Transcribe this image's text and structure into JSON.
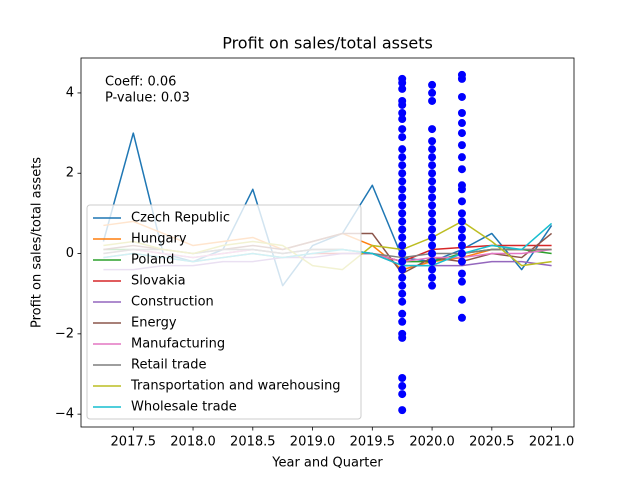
{
  "chart_data": [
    {
      "type": "line",
      "title": "Profit on sales/total assets",
      "xlabel": "Year and Quarter",
      "ylabel": "Profit on sales/total assets",
      "annotations": [
        "Coeff: 0.06",
        "P-value: 0.03"
      ],
      "x": [
        2017.25,
        2017.5,
        2017.75,
        2018.0,
        2018.25,
        2018.5,
        2018.75,
        2019.0,
        2019.25,
        2019.5,
        2019.75,
        2020.0,
        2020.25,
        2020.5,
        2020.75,
        2021.0
      ],
      "series": [
        {
          "name": "Czech Republic",
          "color": "#1f77b4",
          "values": [
            0.3,
            3.0,
            0.0,
            -0.2,
            0.1,
            1.6,
            -0.8,
            0.2,
            0.5,
            1.7,
            -0.1,
            -0.2,
            0.1,
            0.5,
            -0.4,
            0.7
          ]
        },
        {
          "name": "Hungary",
          "color": "#ff7f0e",
          "values": [
            0.7,
            0.8,
            0.5,
            0.2,
            0.3,
            0.4,
            0.1,
            0.3,
            0.5,
            0.2,
            -0.4,
            -0.2,
            -0.1,
            0.1,
            0.1,
            0.1
          ]
        },
        {
          "name": "Poland",
          "color": "#2ca02c",
          "values": [
            0.1,
            0.1,
            0.0,
            -0.1,
            0.0,
            0.1,
            0.0,
            0.1,
            0.1,
            0.0,
            -0.2,
            -0.2,
            0.0,
            0.1,
            0.1,
            0.0
          ]
        },
        {
          "name": "Slovakia",
          "color": "#d62728",
          "values": [
            -0.1,
            0.0,
            -0.1,
            -0.2,
            -0.1,
            0.0,
            -0.1,
            0.0,
            0.0,
            0.0,
            -0.2,
            0.1,
            0.15,
            0.2,
            0.2,
            0.2
          ]
        },
        {
          "name": "Construction",
          "color": "#9467bd",
          "values": [
            -0.4,
            -0.4,
            -0.3,
            -0.3,
            -0.2,
            -0.2,
            -0.1,
            -0.1,
            0.0,
            0.0,
            -0.3,
            -0.3,
            -0.3,
            -0.2,
            -0.2,
            -0.3
          ]
        },
        {
          "name": "Energy",
          "color": "#8c564b",
          "values": [
            0.1,
            0.2,
            0.1,
            0.0,
            0.1,
            0.2,
            0.1,
            0.3,
            0.5,
            0.5,
            -0.5,
            -0.1,
            -0.2,
            0.0,
            -0.1,
            0.5
          ]
        },
        {
          "name": "Manufacturing",
          "color": "#e377c2",
          "values": [
            0.0,
            0.1,
            0.0,
            -0.1,
            0.0,
            0.1,
            0.0,
            0.1,
            0.1,
            0.0,
            -0.2,
            -0.1,
            -0.1,
            0.0,
            0.0,
            0.1
          ]
        },
        {
          "name": "Retail trade",
          "color": "#7f7f7f",
          "values": [
            0.0,
            0.1,
            0.1,
            0.0,
            0.1,
            0.1,
            0.0,
            0.1,
            0.1,
            0.0,
            -0.1,
            0.0,
            0.0,
            0.1,
            0.1,
            0.1
          ]
        },
        {
          "name": "Transportation and warehousing",
          "color": "#bcbd22",
          "values": [
            0.2,
            0.3,
            0.1,
            0.0,
            0.2,
            0.3,
            0.2,
            -0.3,
            -0.4,
            0.2,
            0.1,
            0.4,
            0.8,
            0.3,
            -0.3,
            -0.2
          ]
        },
        {
          "name": "Wholesale trade",
          "color": "#17becf",
          "values": [
            -0.1,
            0.0,
            -0.1,
            -0.2,
            -0.1,
            0.0,
            -0.1,
            0.0,
            0.1,
            0.0,
            -0.3,
            -0.3,
            0.0,
            0.2,
            0.1,
            0.75
          ]
        }
      ],
      "xlim": [
        2017.0625,
        2021.1875
      ],
      "xticks": [
        2017.5,
        {
          "value": 2018,
          "label": "2018.0"
        },
        2018.5,
        {
          "value": 2019,
          "label": "2019.0"
        },
        2019.5,
        {
          "value": 2020,
          "label": "2020.0"
        },
        2020.5,
        {
          "value": 2021,
          "label": "2021.0"
        }
      ],
      "ylim": [
        -4.32,
        4.87
      ],
      "yticks": [
        {
          "value": -4,
          "label": "−4"
        },
        {
          "value": -2,
          "label": "−2"
        },
        0,
        2,
        4
      ],
      "legend": "lower left"
    },
    {
      "type": "scatter",
      "color": "#0000ff",
      "x": [
        2019.75,
        2019.75,
        2019.75,
        2019.75,
        2019.75,
        2019.75,
        2019.75,
        2019.75,
        2019.75,
        2019.75,
        2019.75,
        2019.75,
        2019.75,
        2019.75,
        2019.75,
        2019.75,
        2019.75,
        2019.75,
        2019.75,
        2019.75,
        2019.75,
        2019.75,
        2019.75,
        2019.75,
        2019.75,
        2019.75,
        2019.75,
        2019.75,
        2019.75,
        2019.75,
        2019.75,
        2019.75,
        2019.75,
        2019.75,
        2019.75,
        2019.75,
        2019.75,
        2020.0,
        2020.0,
        2020.0,
        2020.0,
        2020.0,
        2020.0,
        2020.0,
        2020.0,
        2020.0,
        2020.0,
        2020.0,
        2020.0,
        2020.0,
        2020.0,
        2020.0,
        2020.0,
        2020.0,
        2020.0,
        2020.0,
        2020.0,
        2020.0,
        2020.0,
        2020.0,
        2020.25,
        2020.25,
        2020.25,
        2020.25,
        2020.25,
        2020.25,
        2020.25,
        2020.25,
        2020.25,
        2020.25,
        2020.25,
        2020.25,
        2020.25,
        2020.25,
        2020.25,
        2020.25,
        2020.25,
        2020.25,
        2020.25,
        2020.25,
        2020.25,
        2020.25,
        2020.25
      ],
      "values": [
        4.35,
        4.25,
        4.1,
        3.8,
        3.7,
        3.5,
        3.35,
        3.1,
        2.9,
        2.6,
        2.4,
        2.2,
        2.0,
        1.8,
        1.6,
        1.4,
        1.2,
        1.0,
        0.8,
        0.6,
        0.4,
        0.2,
        0.0,
        -0.2,
        -0.4,
        -0.6,
        -0.8,
        -1.0,
        -1.2,
        -1.5,
        -1.7,
        -2.0,
        -2.1,
        -3.1,
        -3.3,
        -3.5,
        -3.9,
        4.2,
        4.0,
        3.8,
        3.1,
        2.8,
        2.6,
        2.4,
        2.2,
        2.0,
        1.8,
        1.6,
        1.4,
        1.2,
        1.0,
        0.8,
        0.6,
        0.4,
        0.2,
        0.0,
        -0.2,
        -0.4,
        -0.6,
        -0.8,
        4.45,
        4.35,
        3.9,
        3.5,
        3.25,
        3.0,
        2.7,
        2.4,
        2.1,
        1.7,
        1.6,
        1.3,
        1.0,
        0.8,
        0.6,
        0.4,
        0.2,
        0.0,
        -0.2,
        -0.5,
        -0.7,
        -1.15,
        -1.6
      ]
    }
  ]
}
